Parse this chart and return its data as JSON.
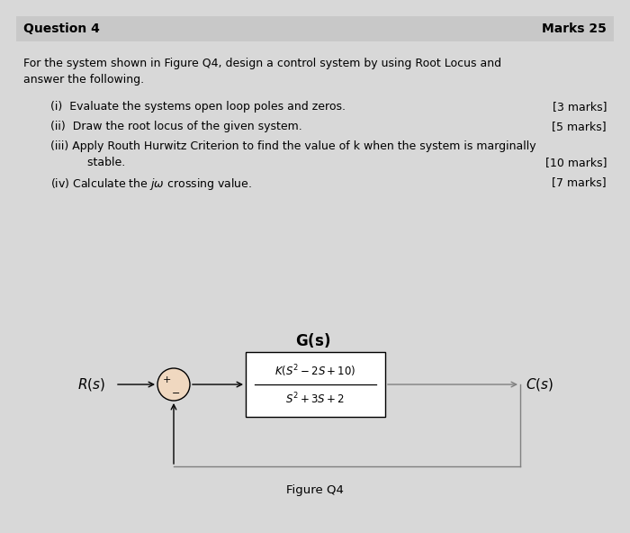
{
  "title_text": "Question 4",
  "marks_text": "Marks 25",
  "header_bg": "#c8c8c8",
  "body_bg": "#ffffff",
  "outer_bg": "#d8d8d8",
  "intro_line1": "For the system shown in Figure Q4, design a control system by using Root Locus and",
  "intro_line2": "answer the following.",
  "item1_text": "(i)  Evaluate the systems open loop poles and zeros.",
  "item1_marks": "[3 marks]",
  "item2_text": "(ii)  Draw the root locus of the given system.",
  "item2_marks": "[5 marks]",
  "item3_text": "(iii) Apply Routh Hurwitz Criterion to find the value of k when the system is marginally",
  "item3_cont": "      stable.",
  "item3_marks": "[10 marks]",
  "item4_text": "(iv) Calculate the $j\\omega$ crossing value.",
  "item4_marks": "[7 marks]",
  "gs_label": "$\\mathbf{G(s)}$",
  "transfer_num": "$K(S^2 - 2S + 10)$",
  "transfer_den": "$S^2 + 3S + 2$",
  "rs_label": "$\\mathbf{\\it{R(s)}}$",
  "cs_label": "$\\mathbf{\\it{C(s)}}$",
  "fig_caption": "Figure Q4",
  "box_fill": "#ffffff",
  "circle_fill": "#f0d8c0",
  "line_color": "#808080",
  "text_color": "#000000",
  "font_size_header": 10,
  "font_size_body": 9,
  "font_size_diagram": 10
}
